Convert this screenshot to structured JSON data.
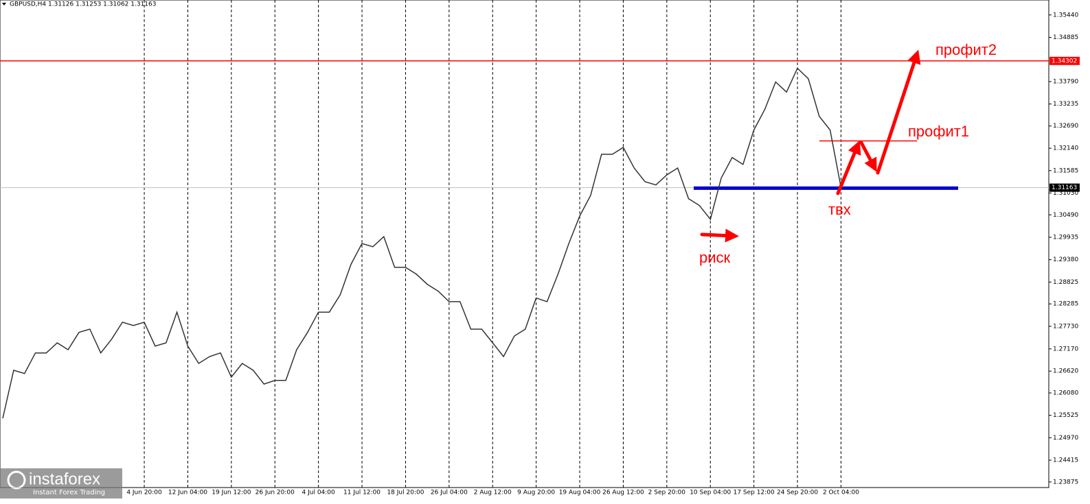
{
  "chart_data": {
    "type": "line",
    "title": "GBPUSD,H4  1.31126 1.31253 1.31062 1.31163",
    "color": "#333333",
    "grid": true,
    "categories": [
      null,
      null,
      null,
      null,
      null,
      null,
      null,
      null,
      null,
      null,
      null,
      null,
      null,
      "4 Jun 20:00",
      null,
      null,
      null,
      "12 Jun 04:00",
      null,
      null,
      null,
      "19 Jun 12:00",
      null,
      null,
      null,
      "26 Jun 20:00",
      null,
      null,
      null,
      "4 Jul 04:00",
      null,
      null,
      null,
      "11 Jul 12:00",
      null,
      null,
      null,
      "18 Jul 20:00",
      null,
      null,
      null,
      "26 Jul 04:00",
      null,
      null,
      null,
      "2 Aug 12:00",
      null,
      null,
      null,
      "9 Aug 20:00",
      null,
      null,
      null,
      "19 Aug 04:00",
      null,
      null,
      null,
      "26 Aug 12:00",
      null,
      null,
      null,
      "2 Sep 20:00",
      null,
      null,
      null,
      "10 Sep 04:00",
      null,
      null,
      null,
      "17 Sep 12:00",
      null,
      null,
      null,
      "24 Sep 20:00",
      null,
      null,
      null,
      "2 Oct 04:00"
    ],
    "values": [
      1.2545,
      1.2664,
      1.2656,
      1.2707,
      1.2707,
      1.2732,
      1.2715,
      1.2758,
      1.2766,
      1.2707,
      1.2741,
      1.2783,
      1.2775,
      1.2783,
      1.2724,
      1.2732,
      1.2808,
      1.2724,
      1.2681,
      1.2698,
      1.2707,
      1.2647,
      1.2681,
      1.2664,
      1.263,
      1.2639,
      1.2639,
      1.2715,
      1.2758,
      1.2808,
      1.2808,
      1.2851,
      1.2927,
      1.2978,
      1.297,
      1.2995,
      1.2919,
      1.2919,
      1.2902,
      1.2877,
      1.286,
      1.2834,
      1.2834,
      1.2766,
      1.2766,
      1.2732,
      1.2698,
      1.2749,
      1.2766,
      1.2843,
      1.2834,
      1.2902,
      1.2978,
      1.3046,
      1.3097,
      1.3199,
      1.3199,
      1.3216,
      1.3165,
      1.3131,
      1.3123,
      1.3148,
      1.3165,
      1.3089,
      1.3072,
      1.3038,
      1.314,
      1.3191,
      1.3174,
      1.3259,
      1.331,
      1.3378,
      1.3353,
      1.3412,
      1.3386,
      1.3293,
      1.3259,
      1.31163
    ],
    "ylim": [
      1.2355,
      1.3581
    ],
    "yticks": [
      {
        "value": 1.3544,
        "label": "1.35440"
      },
      {
        "value": 1.34885,
        "label": "1.34885"
      },
      {
        "value": 1.3379,
        "label": "1.33790"
      },
      {
        "value": 1.33235,
        "label": "1.33235"
      },
      {
        "value": 1.3269,
        "label": "1.32690"
      },
      {
        "value": 1.3214,
        "label": "1.32140"
      },
      {
        "value": 1.31585,
        "label": "1.31585"
      },
      {
        "value": 1.3103,
        "label": "1.31030"
      },
      {
        "value": 1.3049,
        "label": "1.30490"
      },
      {
        "value": 1.29935,
        "label": "1.29935"
      },
      {
        "value": 1.2938,
        "label": "1.29380"
      },
      {
        "value": 1.28825,
        "label": "1.28825"
      },
      {
        "value": 1.28285,
        "label": "1.28285"
      },
      {
        "value": 1.2773,
        "label": "1.27730"
      },
      {
        "value": 1.2717,
        "label": "1.27170"
      },
      {
        "value": 1.2662,
        "label": "1.26620"
      },
      {
        "value": 1.2608,
        "label": "1.26080"
      },
      {
        "value": 1.25525,
        "label": "1.25525"
      },
      {
        "value": 1.2497,
        "label": "1.24970"
      },
      {
        "value": 1.24415,
        "label": "1.24415"
      },
      {
        "value": 1.23875,
        "label": "1.23875"
      }
    ],
    "price_lines": [
      {
        "value": 1.34302,
        "label": "1.34302",
        "color": "#ff0000"
      },
      {
        "value": 1.31163,
        "label": "1.31163",
        "color": "#c0c0c0"
      },
      {
        "value": 1.3115,
        "color": "#0000cc"
      },
      {
        "value": 1.3232,
        "color": "#ff0000"
      }
    ],
    "annotations": [
      "профит2",
      "профит1",
      "риск",
      "твх"
    ],
    "watermark": {
      "name": "instaforex",
      "tagline": "Instant Forex Trading"
    }
  }
}
